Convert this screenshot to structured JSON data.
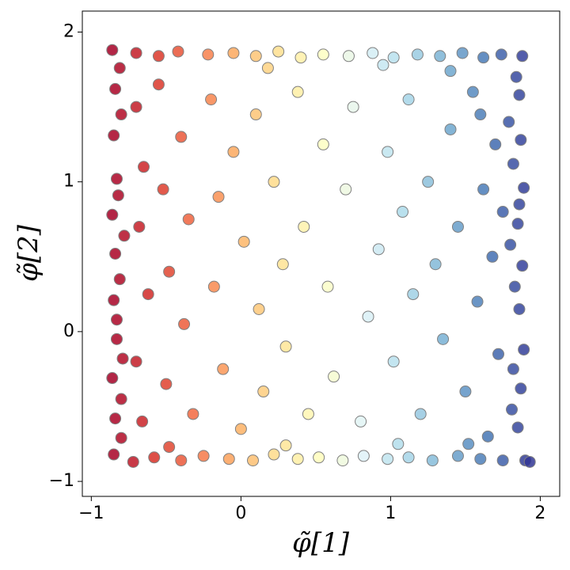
{
  "chart_data": {
    "type": "scatter",
    "xlabel": "φ̃[1]",
    "ylabel": "φ̃[2]",
    "xlim": [
      -1.06,
      2.13
    ],
    "ylim": [
      -1.1,
      2.14
    ],
    "xticks": [
      {
        "value": -1,
        "label": "−1"
      },
      0,
      1,
      2
    ],
    "yticks": [
      {
        "value": -1,
        "label": "−1"
      },
      0,
      1,
      2
    ],
    "colormap": [
      "#a50026",
      "#d73027",
      "#f46d43",
      "#fdae61",
      "#fee090",
      "#ffffbf",
      "#e0f3f8",
      "#abd9e9",
      "#74add1",
      "#4575b4",
      "#313695"
    ],
    "edgecolor": "#808080",
    "x": [
      -0.86,
      -0.84,
      -0.85,
      -0.83,
      -0.86,
      -0.84,
      -0.85,
      -0.83,
      -0.86,
      -0.84,
      -0.85,
      -0.8,
      -0.81,
      -0.8,
      -0.82,
      -0.79,
      -0.81,
      -0.78,
      -0.8,
      -0.83,
      1.88,
      1.86,
      1.87,
      1.89,
      1.85,
      1.88,
      1.86,
      1.89,
      1.87,
      1.85,
      1.9,
      1.93,
      1.82,
      1.83,
      1.81,
      1.84,
      1.8,
      1.82,
      1.79,
      1.86,
      -0.7,
      -0.55,
      -0.42,
      -0.22,
      -0.05,
      0.1,
      0.25,
      0.4,
      0.55,
      0.72,
      0.88,
      1.02,
      1.18,
      1.33,
      1.48,
      1.62,
      1.74,
      0.18,
      0.95,
      1.4,
      -0.72,
      -0.58,
      -0.4,
      -0.25,
      -0.08,
      0.08,
      0.22,
      0.38,
      0.52,
      0.68,
      0.82,
      0.98,
      1.12,
      1.28,
      1.45,
      1.6,
      1.75,
      0.3,
      1.05,
      -0.48,
      -0.7,
      -0.65,
      -0.68,
      -0.62,
      -0.7,
      -0.66,
      -0.55,
      -0.52,
      -0.48,
      -0.5,
      -0.4,
      -0.35,
      -0.38,
      -0.32,
      -0.2,
      -0.15,
      -0.18,
      -0.12,
      -0.05,
      0.02,
      0.0,
      0.1,
      0.12,
      0.15,
      0.22,
      0.28,
      0.3,
      0.38,
      0.42,
      0.45,
      0.55,
      0.58,
      0.62,
      0.7,
      0.75,
      0.8,
      0.85,
      0.92,
      0.98,
      1.02,
      1.08,
      1.12,
      1.15,
      1.2,
      1.25,
      1.3,
      1.35,
      1.4,
      1.45,
      1.5,
      1.55,
      1.58,
      1.62,
      1.65,
      1.68,
      1.7,
      1.72,
      1.75,
      1.6,
      1.52
    ],
    "values": [
      1.88,
      1.62,
      1.31,
      1.02,
      0.78,
      0.52,
      0.21,
      -0.05,
      -0.31,
      -0.58,
      -0.82,
      -0.71,
      0.35,
      1.45,
      0.91,
      -0.18,
      1.76,
      0.64,
      -0.45,
      0.08,
      1.84,
      1.58,
      1.28,
      0.96,
      0.72,
      0.44,
      0.15,
      -0.12,
      -0.38,
      -0.64,
      -0.86,
      -0.87,
      1.12,
      0.3,
      -0.52,
      1.7,
      0.58,
      -0.25,
      1.4,
      0.85,
      1.86,
      1.84,
      1.87,
      1.85,
      1.86,
      1.84,
      1.87,
      1.83,
      1.85,
      1.84,
      1.86,
      1.83,
      1.85,
      1.84,
      1.86,
      1.83,
      1.85,
      1.76,
      1.78,
      1.74,
      -0.87,
      -0.84,
      -0.86,
      -0.83,
      -0.85,
      -0.86,
      -0.82,
      -0.85,
      -0.84,
      -0.86,
      -0.83,
      -0.85,
      -0.84,
      -0.86,
      -0.83,
      -0.85,
      -0.86,
      -0.76,
      -0.75,
      -0.77,
      1.5,
      1.1,
      0.7,
      0.25,
      -0.2,
      -0.6,
      1.65,
      0.95,
      0.4,
      -0.35,
      1.3,
      0.75,
      0.05,
      -0.55,
      1.55,
      0.9,
      0.3,
      -0.25,
      1.2,
      0.6,
      -0.65,
      1.45,
      0.15,
      -0.4,
      1.0,
      0.45,
      -0.1,
      1.6,
      0.7,
      -0.55,
      1.25,
      0.3,
      -0.3,
      0.95,
      1.5,
      -0.6,
      0.1,
      0.55,
      1.2,
      -0.2,
      0.8,
      1.55,
      0.25,
      -0.55,
      1.0,
      0.45,
      -0.05,
      1.35,
      0.7,
      -0.4,
      1.6,
      0.2,
      0.95,
      -0.7,
      0.5,
      1.25,
      -0.15,
      0.8,
      1.45,
      -0.75
    ]
  }
}
